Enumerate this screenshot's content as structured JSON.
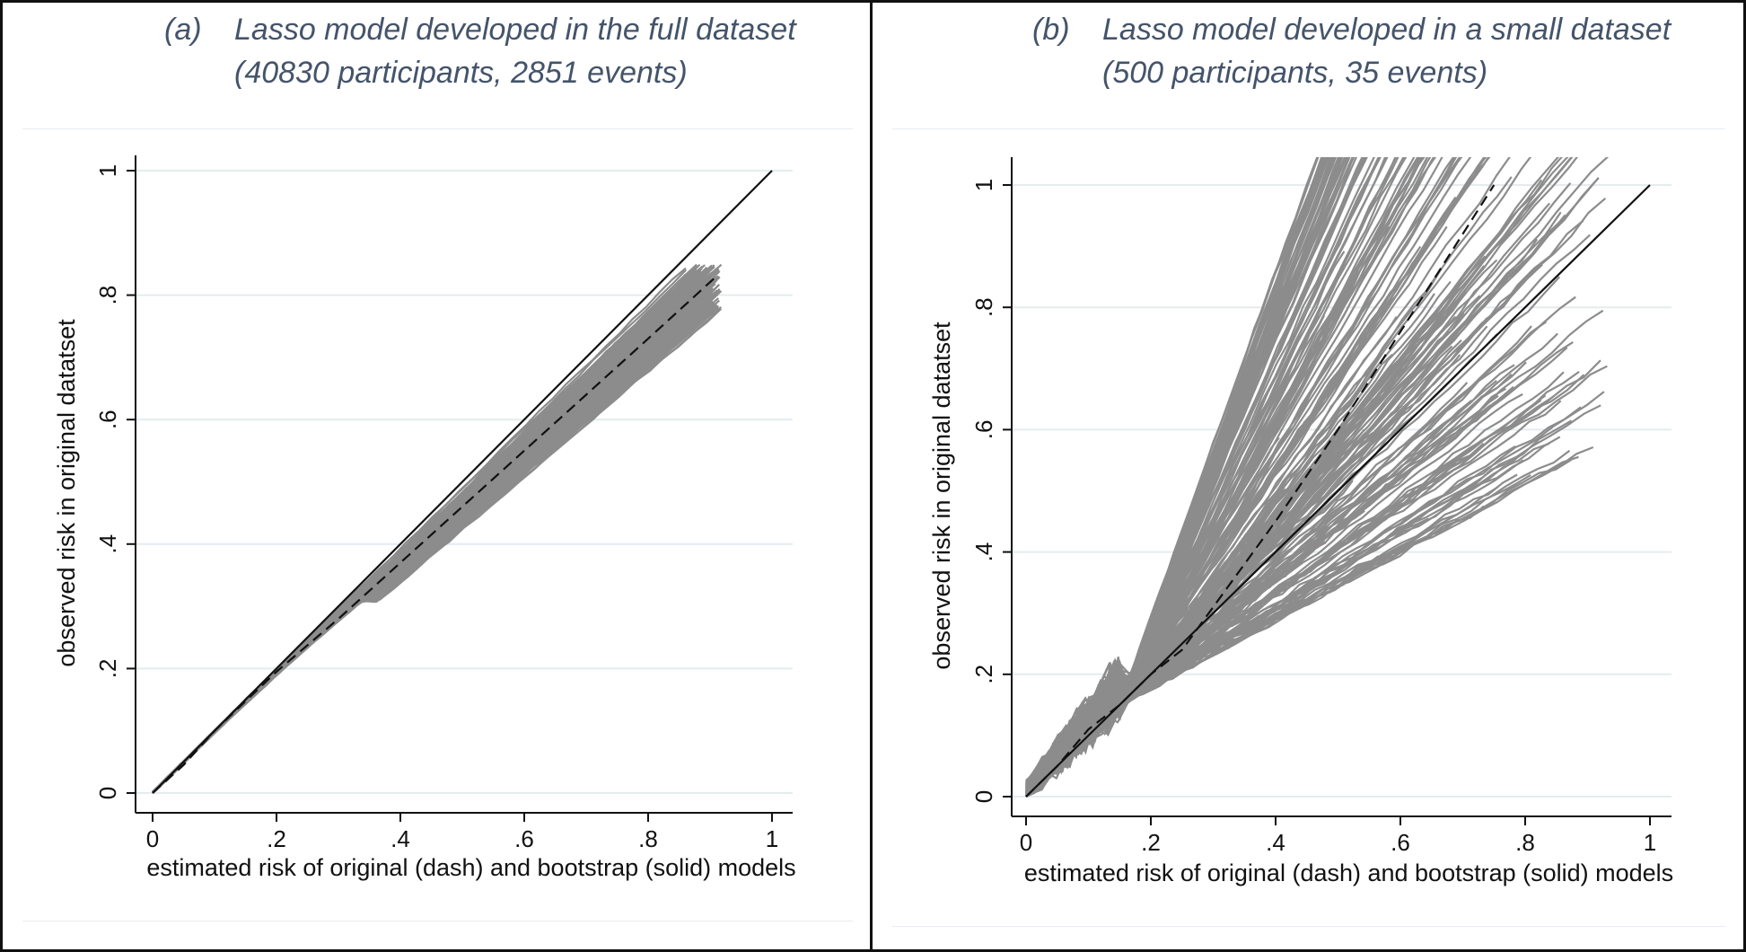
{
  "colors": {
    "title": "#44546a",
    "bootstrap_lines": "#8c8c8c",
    "reference_line": "#111111",
    "gridlines": "#e4ecef",
    "border": "#111111"
  },
  "panels": [
    {
      "label": "(a)",
      "title_line1": "Lasso model developed in the full dataset",
      "title_line2": "(40830 participants, 2851 events)"
    },
    {
      "label": "(b)",
      "title_line1": "Lasso model developed in a small dataset",
      "title_line2": "(500 participants, 35 events)"
    }
  ],
  "chart_data": [
    {
      "type": "line",
      "xlabel": "estimated risk of original (dash) and bootstrap (solid) models",
      "ylabel": "observed risk in original datatset",
      "xlim": [
        0,
        1
      ],
      "ylim": [
        0,
        1
      ],
      "xticks": [
        "0",
        ".2",
        ".4",
        ".6",
        ".8",
        "1"
      ],
      "yticks": [
        "0",
        ".2",
        ".4",
        ".6",
        ".8",
        "1"
      ],
      "grid": "horizontal",
      "series": [
        {
          "style": "solid-black",
          "x": [
            0,
            1
          ],
          "y": [
            0,
            1
          ]
        },
        {
          "style": "dash-black",
          "x": [
            0,
            0.05,
            0.1,
            0.2,
            0.3,
            0.4,
            0.5,
            0.6,
            0.7,
            0.8,
            0.91
          ],
          "y": [
            0,
            0.045,
            0.1,
            0.195,
            0.28,
            0.37,
            0.46,
            0.55,
            0.64,
            0.73,
            0.83
          ]
        }
      ],
      "bootstrap": {
        "count": 200,
        "x_end_range": [
          0.86,
          0.92
        ],
        "y_end_range": [
          0.77,
          0.85
        ]
      }
    },
    {
      "type": "line",
      "xlabel": "estimated risk of original (dash) and bootstrap (solid) models",
      "ylabel": "observed risk in original datatset",
      "xlim": [
        0,
        1
      ],
      "ylim": [
        0,
        1
      ],
      "xticks": [
        "0",
        ".2",
        ".4",
        ".6",
        ".8",
        "1"
      ],
      "yticks": [
        "0",
        ".2",
        ".4",
        ".6",
        ".8",
        "1"
      ],
      "grid": "horizontal",
      "series": [
        {
          "style": "solid-black",
          "x": [
            0,
            1
          ],
          "y": [
            0,
            1
          ]
        },
        {
          "style": "dash-black",
          "x": [
            0,
            0.05,
            0.1,
            0.15,
            0.2,
            0.25,
            0.3,
            0.4,
            0.5,
            0.6,
            0.7,
            0.75
          ],
          "y": [
            0,
            0.05,
            0.11,
            0.15,
            0.2,
            0.24,
            0.31,
            0.45,
            0.6,
            0.76,
            0.92,
            1.0
          ]
        }
      ],
      "bootstrap": {
        "count": 200,
        "x_end_range": [
          0.38,
          0.94
        ],
        "y_end_range": [
          0.5,
          1.0
        ]
      }
    }
  ]
}
